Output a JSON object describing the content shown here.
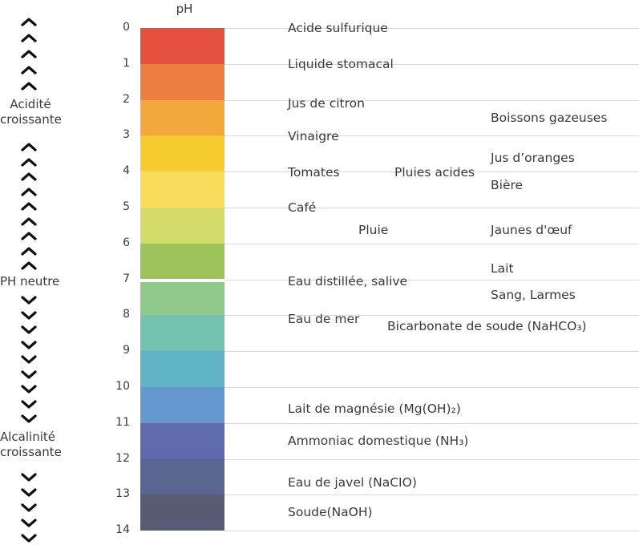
{
  "scale_title": "pH",
  "ticks": [
    "0",
    "1",
    "2",
    "3",
    "4",
    "5",
    "6",
    "7",
    "8",
    "9",
    "10",
    "11",
    "12",
    "13",
    "14"
  ],
  "colors": [
    "#e5503f",
    "#ec7f3f",
    "#f3a83b",
    "#f7cb2f",
    "#f9dc5c",
    "#d3dc6a",
    "#9cc45a",
    "#8fc98c",
    "#74c2b0",
    "#62b3c5",
    "#6598cf",
    "#5f6aad",
    "#5a6592",
    "#575b73"
  ],
  "labels": {
    "acide_sulfurique": "Acide sulfurique",
    "liquide_stomacal": "Liquide stomacal",
    "jus_citron": "Jus de citron",
    "boissons_gazeuses": "Boissons gazeuses",
    "vinaigre": "Vinaigre",
    "jus_oranges": "Jus d’oranges",
    "tomates": "Tomates",
    "pluies_acides": "Pluies acides",
    "biere": "Bière",
    "cafe": "Café",
    "pluie": "Pluie",
    "jaunes_oeuf": "Jaunes d'œuf",
    "lait": "Lait",
    "eau_distillee": "Eau distillée, salive",
    "sang_larmes": "Sang, Larmes",
    "eau_mer": "Eau de mer",
    "bicarbonate": "Bicarbonate de soude (NaHCO₃)",
    "lait_magnesie": "Lait de magnésie (Mg(OH)₂)",
    "ammoniac": "Ammoniac domestique (NH₃)",
    "eau_javel": "Eau de javel (NaCIO)",
    "soude": "Soude(NaOH)"
  },
  "side": {
    "acidite": [
      "Acidité",
      "croissante"
    ],
    "neutre": "PH neutre",
    "alcalinite": [
      "Alcalinité",
      "croissante"
    ]
  },
  "icons": {
    "up": "chevron-up-icon",
    "down": "chevron-down-icon"
  }
}
